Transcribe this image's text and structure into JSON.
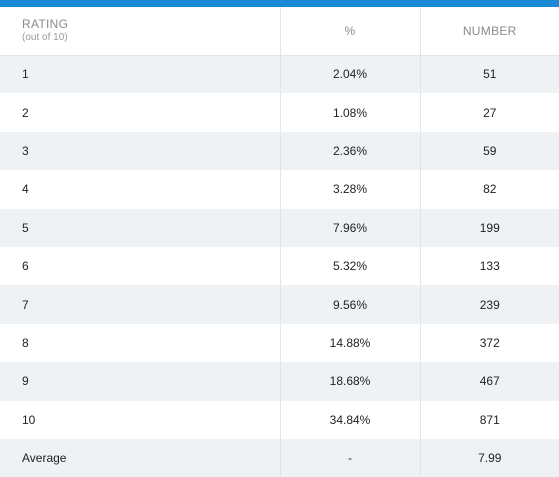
{
  "colors": {
    "accent_bar": "#1a8ad6",
    "stripe": "#eef2f5",
    "header_text": "#8a8a8a"
  },
  "table": {
    "headers": {
      "rating": "RATING",
      "rating_sub": "(out of 10)",
      "percent": "%",
      "number": "NUMBER"
    },
    "rows": [
      {
        "rating": "1",
        "percent": "2.04%",
        "number": "51"
      },
      {
        "rating": "2",
        "percent": "1.08%",
        "number": "27"
      },
      {
        "rating": "3",
        "percent": "2.36%",
        "number": "59"
      },
      {
        "rating": "4",
        "percent": "3.28%",
        "number": "82"
      },
      {
        "rating": "5",
        "percent": "7.96%",
        "number": "199"
      },
      {
        "rating": "6",
        "percent": "5.32%",
        "number": "133"
      },
      {
        "rating": "7",
        "percent": "9.56%",
        "number": "239"
      },
      {
        "rating": "8",
        "percent": "14.88%",
        "number": "372"
      },
      {
        "rating": "9",
        "percent": "18.68%",
        "number": "467"
      },
      {
        "rating": "10",
        "percent": "34.84%",
        "number": "871"
      }
    ],
    "average": {
      "label": "Average",
      "percent": "-",
      "number": "7.99"
    }
  }
}
